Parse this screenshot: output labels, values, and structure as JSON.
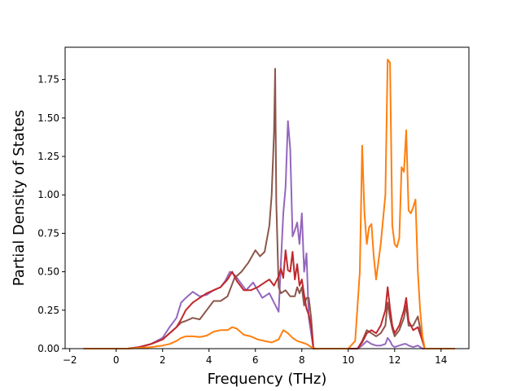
{
  "chart_data": {
    "type": "line",
    "title": "",
    "xlabel": "Frequency (THz)",
    "ylabel": "Partial Density of States",
    "xlim": [
      -2.2,
      15.2
    ],
    "ylim": [
      0,
      1.96
    ],
    "xticks": [
      -2,
      0,
      2,
      4,
      6,
      8,
      10,
      12,
      14
    ],
    "yticks": [
      0.0,
      0.25,
      0.5,
      0.75,
      1.0,
      1.25,
      1.5,
      1.75
    ],
    "xtick_labels": [
      "−2",
      "0",
      "2",
      "4",
      "6",
      "8",
      "10",
      "12",
      "14"
    ],
    "ytick_labels": [
      "0.00",
      "0.25",
      "0.50",
      "0.75",
      "1.00",
      "1.25",
      "1.50",
      "1.75"
    ],
    "grid": false,
    "legend": "none",
    "series": [
      {
        "color": "#9467bd",
        "x": [
          -1.4,
          0,
          0.5,
          1.0,
          1.5,
          2.0,
          2.3,
          2.6,
          2.8,
          3.0,
          3.3,
          3.6,
          3.9,
          4.2,
          4.5,
          4.7,
          4.9,
          5.1,
          5.3,
          5.6,
          5.9,
          6.1,
          6.3,
          6.6,
          6.8,
          7.0,
          7.1,
          7.2,
          7.3,
          7.4,
          7.5,
          7.6,
          7.7,
          7.8,
          7.9,
          8.0,
          8.1,
          8.2,
          8.3,
          8.4,
          8.5,
          8.6,
          9.0,
          10.0,
          10.4,
          10.6,
          10.8,
          11.0,
          11.2,
          11.4,
          11.6,
          11.7,
          11.8,
          11.9,
          12.0,
          12.2,
          12.4,
          12.5,
          12.6,
          12.8,
          13.0,
          13.2,
          13.3,
          14.6
        ],
        "y": [
          0.0,
          0.0,
          0.0,
          0.01,
          0.03,
          0.07,
          0.14,
          0.2,
          0.3,
          0.33,
          0.37,
          0.34,
          0.35,
          0.38,
          0.4,
          0.44,
          0.5,
          0.48,
          0.44,
          0.38,
          0.43,
          0.38,
          0.33,
          0.36,
          0.3,
          0.24,
          0.56,
          0.88,
          1.05,
          1.48,
          1.3,
          0.73,
          0.77,
          0.82,
          0.68,
          0.88,
          0.5,
          0.62,
          0.2,
          0.1,
          0.0,
          0.0,
          0.0,
          0.0,
          0.0,
          0.02,
          0.05,
          0.03,
          0.02,
          0.02,
          0.03,
          0.07,
          0.05,
          0.02,
          0.01,
          0.02,
          0.03,
          0.03,
          0.02,
          0.01,
          0.02,
          0.0,
          0.0,
          0.0
        ]
      },
      {
        "color": "#8c564b",
        "x": [
          -1.4,
          0,
          0.5,
          1.0,
          1.5,
          2.0,
          2.3,
          2.6,
          2.8,
          3.0,
          3.3,
          3.6,
          3.9,
          4.2,
          4.5,
          4.8,
          5.1,
          5.4,
          5.7,
          6.0,
          6.2,
          6.4,
          6.6,
          6.7,
          6.8,
          6.85,
          6.9,
          7.0,
          7.1,
          7.3,
          7.5,
          7.7,
          7.8,
          7.9,
          8.0,
          8.1,
          8.2,
          8.3,
          8.4,
          8.5,
          8.6,
          9.0,
          10.0,
          10.4,
          10.6,
          10.8,
          11.0,
          11.2,
          11.4,
          11.6,
          11.7,
          11.8,
          11.9,
          12.0,
          12.2,
          12.4,
          12.5,
          12.6,
          12.8,
          13.0,
          13.2,
          13.3,
          14.6
        ],
        "y": [
          0.0,
          0.0,
          0.0,
          0.01,
          0.03,
          0.06,
          0.1,
          0.14,
          0.17,
          0.18,
          0.2,
          0.19,
          0.25,
          0.31,
          0.31,
          0.34,
          0.46,
          0.5,
          0.56,
          0.64,
          0.6,
          0.63,
          0.8,
          1.0,
          1.4,
          1.82,
          0.95,
          0.4,
          0.36,
          0.38,
          0.34,
          0.34,
          0.4,
          0.36,
          0.4,
          0.28,
          0.33,
          0.33,
          0.2,
          0.0,
          0.0,
          0.0,
          0.0,
          0.0,
          0.05,
          0.12,
          0.1,
          0.08,
          0.1,
          0.15,
          0.3,
          0.2,
          0.13,
          0.08,
          0.12,
          0.2,
          0.28,
          0.15,
          0.15,
          0.21,
          0.05,
          0.0,
          0.0
        ]
      },
      {
        "color": "#c1272d",
        "x": [
          -1.4,
          0,
          0.5,
          1.0,
          1.5,
          2.0,
          2.3,
          2.6,
          2.8,
          3.0,
          3.3,
          3.6,
          3.9,
          4.2,
          4.5,
          4.8,
          5.0,
          5.2,
          5.5,
          5.8,
          6.1,
          6.4,
          6.6,
          6.8,
          7.0,
          7.1,
          7.2,
          7.3,
          7.4,
          7.5,
          7.6,
          7.7,
          7.8,
          7.9,
          8.0,
          8.1,
          8.2,
          8.3,
          8.4,
          8.5,
          8.6,
          9.0,
          10.0,
          10.4,
          10.6,
          10.8,
          11.0,
          11.2,
          11.4,
          11.6,
          11.7,
          11.8,
          11.9,
          12.0,
          12.2,
          12.4,
          12.5,
          12.6,
          12.8,
          13.0,
          13.2,
          13.3,
          14.6
        ],
        "y": [
          0.0,
          0.0,
          0.0,
          0.01,
          0.03,
          0.06,
          0.1,
          0.14,
          0.19,
          0.25,
          0.3,
          0.33,
          0.36,
          0.38,
          0.4,
          0.45,
          0.5,
          0.44,
          0.38,
          0.38,
          0.4,
          0.43,
          0.45,
          0.41,
          0.47,
          0.52,
          0.46,
          0.64,
          0.51,
          0.5,
          0.63,
          0.45,
          0.55,
          0.41,
          0.45,
          0.35,
          0.26,
          0.22,
          0.15,
          0.0,
          0.0,
          0.0,
          0.0,
          0.0,
          0.04,
          0.1,
          0.12,
          0.1,
          0.15,
          0.25,
          0.4,
          0.26,
          0.15,
          0.1,
          0.15,
          0.25,
          0.33,
          0.18,
          0.12,
          0.14,
          0.05,
          0.0,
          0.0
        ]
      },
      {
        "color": "#ff7f0e",
        "x": [
          -1.4,
          0,
          0.5,
          1.0,
          1.5,
          2.0,
          2.3,
          2.6,
          2.8,
          3.0,
          3.3,
          3.6,
          3.9,
          4.2,
          4.5,
          4.8,
          5.0,
          5.2,
          5.5,
          5.8,
          6.1,
          6.4,
          6.7,
          7.0,
          7.2,
          7.4,
          7.6,
          7.8,
          8.0,
          8.2,
          8.4,
          8.6,
          9.0,
          10.0,
          10.3,
          10.5,
          10.6,
          10.7,
          10.8,
          10.9,
          11.0,
          11.1,
          11.2,
          11.4,
          11.6,
          11.7,
          11.8,
          11.9,
          12.0,
          12.1,
          12.2,
          12.3,
          12.4,
          12.5,
          12.6,
          12.7,
          12.8,
          12.9,
          13.0,
          13.1,
          13.2,
          13.3,
          14.6
        ],
        "y": [
          0.0,
          0.0,
          0.0,
          0.005,
          0.01,
          0.02,
          0.03,
          0.05,
          0.07,
          0.08,
          0.08,
          0.075,
          0.085,
          0.11,
          0.12,
          0.12,
          0.14,
          0.13,
          0.09,
          0.08,
          0.06,
          0.05,
          0.04,
          0.06,
          0.12,
          0.1,
          0.07,
          0.05,
          0.04,
          0.03,
          0.01,
          0.0,
          0.0,
          0.0,
          0.05,
          0.5,
          1.32,
          0.88,
          0.68,
          0.79,
          0.81,
          0.6,
          0.45,
          0.68,
          1.0,
          1.88,
          1.86,
          0.8,
          0.68,
          0.66,
          0.72,
          1.18,
          1.15,
          1.42,
          0.9,
          0.88,
          0.92,
          0.97,
          0.5,
          0.25,
          0.08,
          0.0,
          0.0
        ]
      }
    ]
  }
}
